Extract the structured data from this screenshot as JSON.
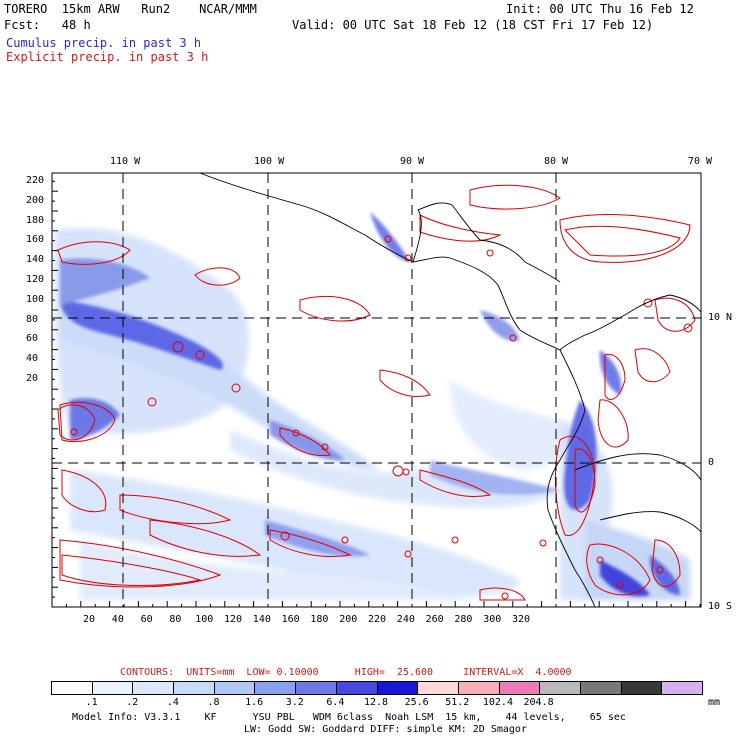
{
  "header": {
    "model": "TORERO  15km ARW   Run2    NCAR/MMM",
    "init": "Init: 00 UTC Thu 16 Feb 12",
    "fcst": "Fcst:   48 h",
    "valid": "Valid: 00 UTC Sat 18 Feb 12 (18 CST Fri 17 Feb 12)",
    "legend_cumulus": "Cumulus precip. in past 3 h",
    "legend_explicit": "Explicit precip. in past 3 h"
  },
  "colors": {
    "cumulus_text": "#2a2ad8",
    "explicit_text": "#d81818",
    "contour_red": "#e00000",
    "map_lines": "#000000"
  },
  "axes": {
    "top_lon_labels": [
      "110 W",
      "100 W",
      "90 W",
      "80 W",
      "70 W"
    ],
    "right_lat_labels": [
      "10 N",
      "0",
      "10 S"
    ],
    "left_grid_labels": [
      "220",
      "200",
      "180",
      "160",
      "140",
      "120",
      "100",
      "80",
      "60",
      "40",
      "20"
    ],
    "bottom_grid_labels": [
      "20",
      "40",
      "60",
      "80",
      "100",
      "120",
      "140",
      "160",
      "180",
      "200",
      "220",
      "240",
      "260",
      "280",
      "300",
      "320"
    ]
  },
  "contour_info": {
    "text": "CONTOURS:  UNITS=mm  LOW= 0.10000      HIGH=  25.600     INTERVAL=X  4.0000"
  },
  "colorbar": {
    "colors": [
      "#ffffff",
      "#eef3ff",
      "#dce8ff",
      "#c8dcfa",
      "#b0c8f8",
      "#8aa0f0",
      "#6c78e8",
      "#4848e0",
      "#1818d8",
      "#ffd8d8",
      "#f8b0b8",
      "#ef7ab8",
      "#b8b8b8",
      "#787878",
      "#383838",
      "#d8b0f0"
    ],
    "labels": [
      ".1",
      ".2",
      ".4",
      ".8",
      "1.6",
      "3.2",
      "6.4",
      "12.8",
      "25.6",
      "51.2",
      "102.4",
      "204.8"
    ],
    "unit": "mm"
  },
  "footer": {
    "line1": "Model Info: V3.3.1    KF      YSU PBL   WDM 6class  Noah LSM  15 km,    44 levels,    65 sec",
    "line2": "LW: Godd SW: Goddard DIFF: simple KM: 2D Smagor"
  }
}
